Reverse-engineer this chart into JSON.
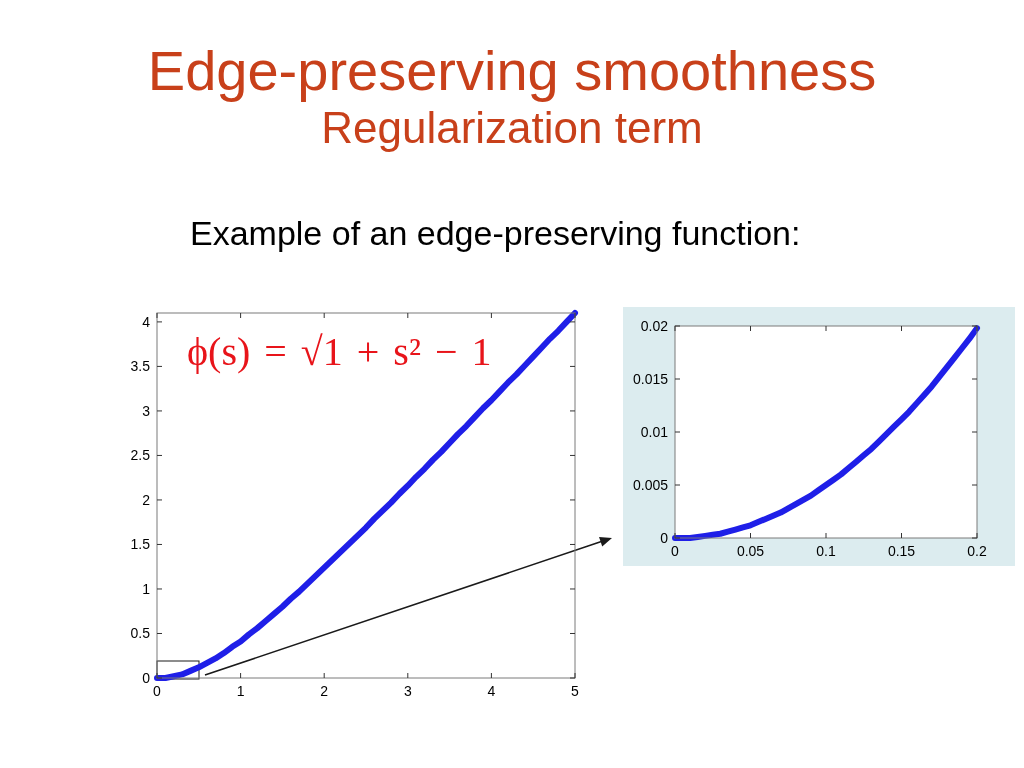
{
  "chart_data": [
    {
      "type": "line",
      "title": "Edge-preserving smoothness",
      "subtitle": "Regularization term",
      "annotations": [
        "Example of an edge-preserving function:",
        "ϕ(s) = √1 + s² − 1"
      ],
      "x": [
        0,
        0.1,
        0.2,
        0.3,
        0.4,
        0.5,
        0.6,
        0.7,
        0.8,
        0.9,
        1,
        1.1,
        1.2,
        1.3,
        1.4,
        1.5,
        1.6,
        1.7,
        1.8,
        1.9,
        2,
        2.1,
        2.2,
        2.3,
        2.4,
        2.5,
        2.6,
        2.7,
        2.8,
        2.9,
        3,
        3.1,
        3.2,
        3.3,
        3.4,
        3.5,
        3.6,
        3.7,
        3.8,
        3.9,
        4,
        4.1,
        4.2,
        4.3,
        4.4,
        4.5,
        4.6,
        4.7,
        4.8,
        4.9,
        5
      ],
      "series": [
        {
          "color": "#1f1fe8",
          "values": [
            0,
            0.0,
            0.02,
            0.04,
            0.08,
            0.12,
            0.17,
            0.22,
            0.28,
            0.35,
            0.41,
            0.49,
            0.56,
            0.64,
            0.72,
            0.8,
            0.89,
            0.97,
            1.06,
            1.15,
            1.24,
            1.33,
            1.42,
            1.51,
            1.6,
            1.69,
            1.79,
            1.88,
            1.97,
            2.07,
            2.16,
            2.26,
            2.35,
            2.45,
            2.54,
            2.64,
            2.74,
            2.83,
            2.93,
            3.03,
            3.12,
            3.22,
            3.32,
            3.41,
            3.51,
            3.61,
            3.71,
            3.81,
            3.9,
            4.0,
            4.1
          ]
        }
      ],
      "xlim": [
        0,
        5
      ],
      "ylim": [
        0,
        4.1
      ],
      "xticks": [
        0,
        1,
        2,
        3,
        4,
        5
      ],
      "yticks": [
        0,
        0.5,
        1,
        1.5,
        2,
        2.5,
        3,
        3.5,
        4
      ],
      "line_style": "solid"
    },
    {
      "type": "line",
      "x": [
        0,
        0.005,
        0.01,
        0.015,
        0.02,
        0.025,
        0.03,
        0.035,
        0.04,
        0.045,
        0.05,
        0.055,
        0.06,
        0.065,
        0.07,
        0.075,
        0.08,
        0.085,
        0.09,
        0.095,
        0.1,
        0.105,
        0.11,
        0.115,
        0.12,
        0.125,
        0.13,
        0.135,
        0.14,
        0.145,
        0.15,
        0.155,
        0.16,
        0.165,
        0.17,
        0.175,
        0.18,
        0.185,
        0.19,
        0.195,
        0.2
      ],
      "series": [
        {
          "color": "#1f1fe8",
          "values": [
            0,
            0.0,
            0.0,
            0.0001,
            0.0002,
            0.0003,
            0.0004,
            0.0006,
            0.0008,
            0.001,
            0.0012,
            0.0015,
            0.0018,
            0.0021,
            0.0024,
            0.0028,
            0.0032,
            0.0036,
            0.004,
            0.0045,
            0.005,
            0.0055,
            0.006,
            0.0066,
            0.0072,
            0.0078,
            0.0084,
            0.0091,
            0.0098,
            0.0105,
            0.0112,
            0.0119,
            0.0127,
            0.0135,
            0.0143,
            0.0152,
            0.0161,
            0.017,
            0.0179,
            0.0188,
            0.0198
          ]
        }
      ],
      "xlim": [
        0,
        0.2
      ],
      "ylim": [
        0,
        0.02
      ],
      "xticks": [
        0,
        0.05,
        0.1,
        0.15,
        0.2
      ],
      "yticks": [
        0,
        0.005,
        0.01,
        0.015,
        0.02
      ],
      "line_style": "solid"
    }
  ]
}
